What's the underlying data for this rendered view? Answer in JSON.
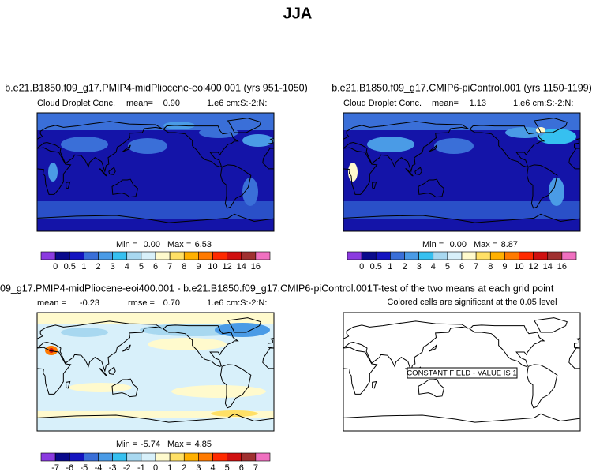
{
  "title": "JJA",
  "panels": [
    {
      "title": "b.e21.B1850.f09_g17.PMIP4-midPliocene-eoi400.001 (yrs 951-1050)",
      "variable": "Cloud Droplet Conc.",
      "mean_label": "mean=",
      "mean": "0.90",
      "units": "1.e6 cm:S:-2:N:",
      "min_label": "Min =",
      "min": "0.00",
      "max_label": "Max =",
      "max": "6.53",
      "colorbar": {
        "labels": [
          0,
          0.5,
          1,
          2,
          3,
          4,
          5,
          6,
          7,
          8,
          9,
          10,
          12,
          14,
          16
        ],
        "colors": [
          "#8b3ae0",
          "#0a0a8c",
          "#1414c0",
          "#3a6fd8",
          "#4a9be6",
          "#36c0f0",
          "#a8d8f0",
          "#d8f0fa",
          "#fffacd",
          "#ffe066",
          "#ffb000",
          "#ff7a00",
          "#ff2a00",
          "#d01010",
          "#a03030",
          "#f070c0"
        ]
      }
    },
    {
      "title": "b.e21.B1850.f09_g17.CMIP6-piControl.001 (yrs 1150-1199)",
      "variable": "Cloud Droplet Conc.",
      "mean_label": "mean=",
      "mean": "1.13",
      "units": "1.e6 cm:S:-2:N:",
      "min_label": "Min =",
      "min": "0.00",
      "max_label": "Max =",
      "max": "8.87",
      "colorbar": {
        "labels": [
          0,
          0.5,
          1,
          2,
          3,
          4,
          5,
          6,
          7,
          8,
          9,
          10,
          12,
          14,
          16
        ],
        "colors": [
          "#8b3ae0",
          "#0a0a8c",
          "#1414c0",
          "#3a6fd8",
          "#4a9be6",
          "#36c0f0",
          "#a8d8f0",
          "#d8f0fa",
          "#fffacd",
          "#ffe066",
          "#ffb000",
          "#ff7a00",
          "#ff2a00",
          "#d01010",
          "#a03030",
          "#f070c0"
        ]
      }
    },
    {
      "title": "09_g17.PMIP4-midPliocene-eoi400.001 - b.e21.B1850.f09_g17.CMIP6-piControl.001",
      "mean_label": "mean =",
      "mean": "-0.23",
      "rmse_label": "rmse =",
      "rmse": "0.70",
      "units": "1.e6 cm:S:-2:N:",
      "min_label": "Min =",
      "min": "-5.74",
      "max_label": "Max =",
      "max": "4.85",
      "colorbar": {
        "labels": [
          -7,
          -6,
          -5,
          -4,
          -3,
          -2,
          -1,
          0,
          1,
          2,
          3,
          4,
          5,
          6,
          7
        ],
        "colors": [
          "#8b3ae0",
          "#0a0a8c",
          "#1414c0",
          "#3a6fd8",
          "#4a9be6",
          "#36c0f0",
          "#a8d8f0",
          "#d8f0fa",
          "#fffacd",
          "#ffe066",
          "#ffb000",
          "#ff7a00",
          "#ff2a00",
          "#d01010",
          "#a03030",
          "#f070c0"
        ]
      }
    },
    {
      "title": "T-test of the two means at each grid point",
      "subtitle": "Colored cells are significant at the 0.05 level",
      "annotation": "CONSTANT FIELD - VALUE IS 1"
    }
  ]
}
